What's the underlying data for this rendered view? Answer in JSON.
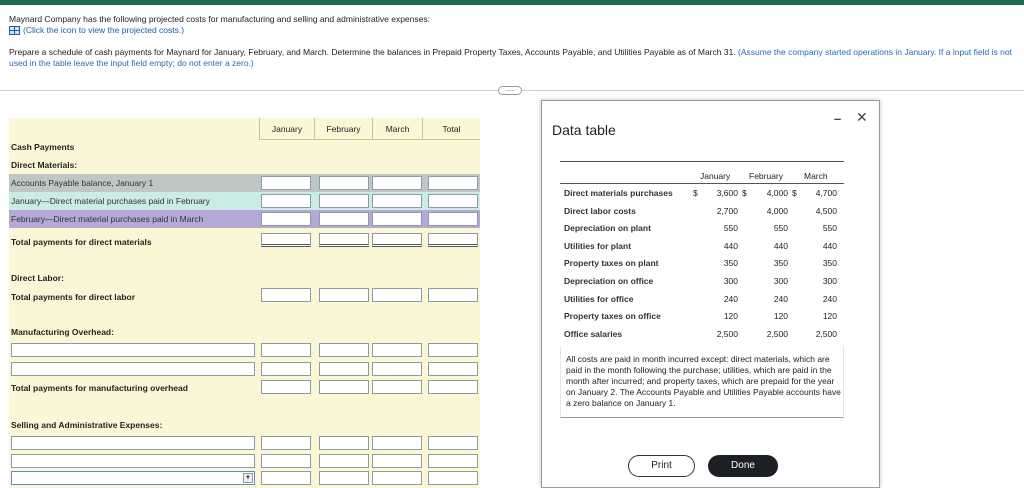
{
  "header": {
    "intro": "Maynard Company has the following projected costs for manufacturing and selling and administrative expenses:",
    "link_text": "(Click the icon to view the projected costs.)",
    "prompt_main": "Prepare a schedule of cash payments for Maynard for January, February, and March. Determine the balances in Prepaid Property Taxes, Accounts Payable, and Utilities Payable as of March 31.",
    "prompt_hint": "(Assume the company started operations in January. If a input field is not used in the table leave the input field empty; do not enter a zero.)",
    "more_label": "....."
  },
  "sheet": {
    "columns": [
      "January",
      "February",
      "March",
      "Total"
    ],
    "labels": {
      "cash_payments": "Cash Payments",
      "direct_materials": "Direct Materials:",
      "ap_balance": "Accounts Payable balance, January 1",
      "jan_paid_feb": "January—Direct material purchases paid in February",
      "feb_paid_mar": "February—Direct material purchases paid in March",
      "total_dm": "Total payments for direct materials",
      "direct_labor": "Direct Labor:",
      "total_dl": "Total payments for direct labor",
      "mfg_overhead": "Manufacturing Overhead:",
      "total_mo": "Total payments for manufacturing overhead",
      "sga": "Selling and Administrative Expenses:"
    }
  },
  "modal": {
    "title": "Data table",
    "minimize": "–",
    "close": "✕",
    "col_headers": [
      "January",
      "February",
      "March"
    ],
    "rows": [
      {
        "label": "Direct materials purchases",
        "cur": "$",
        "jan": "3,600",
        "cur2": "$",
        "feb": "4,000",
        "cur3": "$",
        "mar": "4,700"
      },
      {
        "label": "Direct labor costs",
        "jan": "2,700",
        "feb": "4,000",
        "mar": "4,500"
      },
      {
        "label": "Depreciation on plant",
        "jan": "550",
        "feb": "550",
        "mar": "550"
      },
      {
        "label": "Utilities for plant",
        "jan": "440",
        "feb": "440",
        "mar": "440"
      },
      {
        "label": "Property taxes on plant",
        "jan": "350",
        "feb": "350",
        "mar": "350"
      },
      {
        "label": "Depreciation on office",
        "jan": "300",
        "feb": "300",
        "mar": "300"
      },
      {
        "label": "Utilities for office",
        "jan": "240",
        "feb": "240",
        "mar": "240"
      },
      {
        "label": "Property taxes on office",
        "jan": "120",
        "feb": "120",
        "mar": "120"
      },
      {
        "label": "Office salaries",
        "jan": "2,500",
        "feb": "2,500",
        "mar": "2,500"
      }
    ],
    "note": "All costs are paid in month incurred except: direct materials, which are paid in the month following the purchase; utilities, which are paid in the month after incurred; and property taxes, which are prepaid for the year on January 2. The Accounts Payable and Utilities Payable accounts have a zero balance on January 1.",
    "print_label": "Print",
    "done_label": "Done"
  },
  "colors": {
    "accent": "#1c6b53",
    "sheet_bg": "#fbf7d6",
    "grey_row": "#bfc6c6",
    "teal_row": "#c9ece4",
    "purple_row": "#b4a9d6",
    "link": "#1a5fa8"
  }
}
